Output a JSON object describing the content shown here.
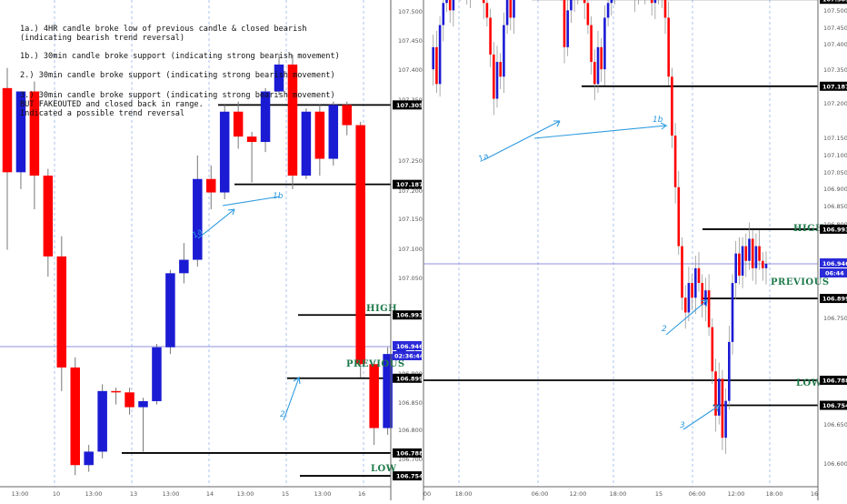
{
  "chart_data": [
    {
      "type": "candlestick",
      "timeframe_hint": "4h",
      "y_ticks": [
        "107.500",
        "107.450",
        "107.400",
        "107.350",
        "107.250",
        "107.200",
        "107.150",
        "107.100",
        "107.050",
        "106.900",
        "106.850",
        "106.800",
        "106.700",
        "106.650"
      ],
      "x_ticks": [
        "13:00",
        "10",
        "13:00",
        "13",
        "13:00",
        "14",
        "13:00",
        "15",
        "13:00",
        "16"
      ],
      "colors": {
        "bull": "#1b1bd4",
        "bear": "#ff0000",
        "level": "#000000",
        "guide": "#2d9be0",
        "anno": "#1e7a4a"
      },
      "candles": [
        {
          "o": 107.33,
          "h": 107.36,
          "l": 107.09,
          "c": 107.205
        },
        {
          "o": 107.205,
          "h": 107.32,
          "l": 107.18,
          "c": 107.325
        },
        {
          "o": 107.325,
          "h": 107.34,
          "l": 107.15,
          "c": 107.2
        },
        {
          "o": 107.2,
          "h": 107.21,
          "l": 107.05,
          "c": 107.08
        },
        {
          "o": 107.08,
          "h": 107.11,
          "l": 106.88,
          "c": 106.915
        },
        {
          "o": 106.915,
          "h": 106.93,
          "l": 106.755,
          "c": 106.77
        },
        {
          "o": 106.77,
          "h": 106.8,
          "l": 106.76,
          "c": 106.79
        },
        {
          "o": 106.79,
          "h": 106.89,
          "l": 106.78,
          "c": 106.88
        },
        {
          "o": 106.88,
          "h": 106.885,
          "l": 106.86,
          "c": 106.878
        },
        {
          "o": 106.878,
          "h": 106.885,
          "l": 106.845,
          "c": 106.856
        },
        {
          "o": 106.856,
          "h": 106.87,
          "l": 106.79,
          "c": 106.865
        },
        {
          "o": 106.865,
          "h": 106.95,
          "l": 106.86,
          "c": 106.945
        },
        {
          "o": 106.945,
          "h": 107.06,
          "l": 106.935,
          "c": 107.055
        },
        {
          "o": 107.055,
          "h": 107.1,
          "l": 107.04,
          "c": 107.075
        },
        {
          "o": 107.075,
          "h": 107.23,
          "l": 107.065,
          "c": 107.195
        },
        {
          "o": 107.195,
          "h": 107.215,
          "l": 107.15,
          "c": 107.175
        },
        {
          "o": 107.175,
          "h": 107.305,
          "l": 107.165,
          "c": 107.295
        },
        {
          "o": 107.295,
          "h": 107.31,
          "l": 107.24,
          "c": 107.258
        },
        {
          "o": 107.258,
          "h": 107.265,
          "l": 107.19,
          "c": 107.25
        },
        {
          "o": 107.25,
          "h": 107.33,
          "l": 107.235,
          "c": 107.325
        },
        {
          "o": 107.325,
          "h": 107.38,
          "l": 107.32,
          "c": 107.365
        },
        {
          "o": 107.365,
          "h": 107.38,
          "l": 107.18,
          "c": 107.2
        },
        {
          "o": 107.2,
          "h": 107.3,
          "l": 107.195,
          "c": 107.295
        },
        {
          "o": 107.295,
          "h": 107.305,
          "l": 107.2,
          "c": 107.225
        },
        {
          "o": 107.225,
          "h": 107.31,
          "l": 107.215,
          "c": 107.305
        },
        {
          "o": 107.305,
          "h": 107.31,
          "l": 107.26,
          "c": 107.275
        },
        {
          "o": 107.275,
          "h": 107.28,
          "l": 106.9,
          "c": 106.92
        },
        {
          "o": 106.92,
          "h": 106.925,
          "l": 106.8,
          "c": 106.825
        },
        {
          "o": 106.825,
          "h": 106.945,
          "l": 106.815,
          "c": 106.935
        },
        {
          "o": 106.935,
          "h": 106.95,
          "l": 106.93,
          "c": 106.941
        },
        {
          "o": 106.941,
          "h": 106.948,
          "l": 106.935,
          "c": 106.946
        }
      ],
      "levels": [
        {
          "price": 107.305,
          "label": "107.305"
        },
        {
          "price": 107.187,
          "label": "107.187"
        },
        {
          "price": 106.993,
          "label": "106.993"
        },
        {
          "price": 106.899,
          "label": "106.899"
        },
        {
          "price": 106.788,
          "label": "106.788"
        },
        {
          "price": 106.754,
          "label": "106.754"
        }
      ],
      "current_price": {
        "price": 106.946,
        "label": "106.946",
        "countdown": "02:36:44"
      },
      "annotations": [
        {
          "id": "1a",
          "text": "1a"
        },
        {
          "id": "1b",
          "text": "1b"
        },
        {
          "id": "2",
          "text": "2"
        }
      ]
    },
    {
      "type": "candlestick",
      "timeframe_hint": "30m",
      "y_ticks": [
        "107.500",
        "107.450",
        "107.400",
        "107.350",
        "107.250",
        "107.200",
        "107.150",
        "107.100",
        "107.050",
        "106.900",
        "106.850",
        "106.800",
        "106.750",
        "106.700",
        "106.650",
        "106.600"
      ],
      "x_ticks": [
        "00",
        "18:00",
        "06:00",
        "12:00",
        "18:00",
        "15",
        "06:00",
        "12:00",
        "18:00",
        "16"
      ],
      "levels": [
        {
          "price": 107.305,
          "label": "107.305"
        },
        {
          "price": 107.187,
          "label": "107.187"
        },
        {
          "price": 106.993,
          "label": "106.993"
        },
        {
          "price": 106.899,
          "label": "106.899"
        },
        {
          "price": 106.788,
          "label": "106.788"
        },
        {
          "price": 106.754,
          "label": "106.754"
        }
      ],
      "current_price": {
        "price": 106.946,
        "label": "106.946",
        "countdown": "06:44"
      },
      "annotations": [
        {
          "id": "1a",
          "text": "1a"
        },
        {
          "id": "1b",
          "text": "1b"
        },
        {
          "id": "2",
          "text": "2"
        },
        {
          "id": "3",
          "text": "3"
        }
      ]
    }
  ],
  "notes": [
    "1a.) 4HR candle broke low of previous candle & closed bearish",
    "(indicating bearish trend reversal)",
    "1b.) 30min candle broke support (indicating strong bearish movement)",
    "2.) 30min candle broke support (indicating strong bearish movement)",
    "3.) 30min candle broke support (indicating strong bearish movement)",
    "BUT FAKEOUTED and closed back in range.",
    "Indicated a possible trend reversal"
  ],
  "labels": {
    "high": "HIGH",
    "previous": "PREVIOUS",
    "low": "LOW"
  }
}
